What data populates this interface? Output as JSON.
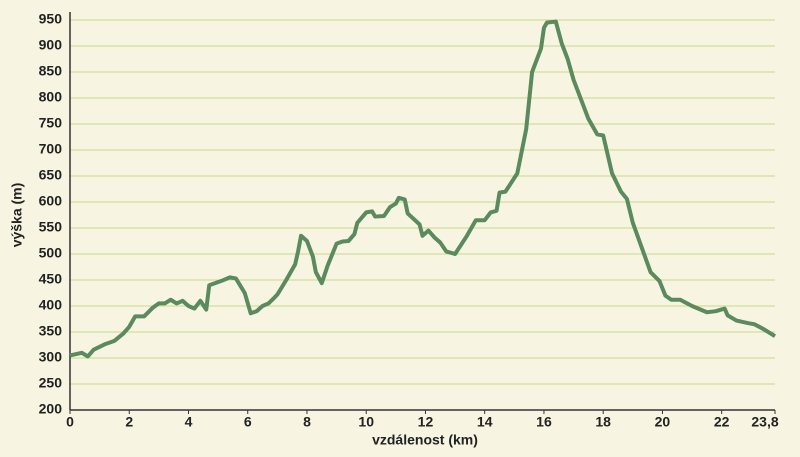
{
  "chart_data": {
    "type": "line",
    "xlabel": "vzdálenost (km)",
    "ylabel": "výška (m)",
    "x": [
      0,
      0.4,
      0.6,
      0.8,
      1.2,
      1.5,
      1.8,
      2.0,
      2.2,
      2.5,
      2.8,
      3.0,
      3.2,
      3.4,
      3.6,
      3.8,
      4.0,
      4.2,
      4.4,
      4.6,
      4.7,
      5.1,
      5.4,
      5.6,
      5.9,
      6.1,
      6.3,
      6.5,
      6.7,
      6.9,
      7.0,
      7.3,
      7.6,
      7.7,
      7.8,
      8.0,
      8.2,
      8.3,
      8.5,
      8.7,
      9.0,
      9.2,
      9.4,
      9.6,
      9.7,
      10.0,
      10.2,
      10.3,
      10.6,
      10.8,
      11.0,
      11.1,
      11.3,
      11.4,
      11.8,
      11.9,
      12.1,
      12.3,
      12.5,
      12.7,
      13.0,
      13.4,
      13.7,
      14.0,
      14.2,
      14.4,
      14.5,
      14.7,
      15.1,
      15.4,
      15.6,
      15.9,
      16.0,
      16.1,
      16.4,
      16.6,
      16.8,
      17.0,
      17.3,
      17.5,
      17.8,
      18.0,
      18.3,
      18.6,
      18.8,
      19.0,
      19.6,
      19.9,
      20.1,
      20.3,
      20.6,
      21.0,
      21.5,
      21.8,
      22.1,
      22.2,
      22.5,
      22.9,
      23.1,
      23.4,
      23.8
    ],
    "series": [
      {
        "name": "výška",
        "color": "#5b8a5e",
        "values": [
          305,
          310,
          303,
          316,
          327,
          333,
          347,
          360,
          380,
          380,
          397,
          405,
          405,
          412,
          405,
          410,
          400,
          395,
          410,
          393,
          440,
          448,
          455,
          453,
          425,
          386,
          390,
          400,
          405,
          416,
          422,
          450,
          480,
          505,
          535,
          525,
          495,
          465,
          444,
          478,
          520,
          524,
          525,
          538,
          560,
          580,
          582,
          572,
          573,
          590,
          597,
          608,
          605,
          578,
          557,
          535,
          545,
          532,
          522,
          505,
          500,
          535,
          565,
          565,
          580,
          583,
          618,
          620,
          655,
          740,
          850,
          895,
          935,
          945,
          947,
          905,
          875,
          835,
          790,
          760,
          730,
          728,
          655,
          620,
          606,
          560,
          465,
          448,
          420,
          412,
          412,
          400,
          388,
          390,
          395,
          382,
          372,
          367,
          365,
          356,
          342
        ]
      }
    ],
    "xlim": [
      0,
      23.8
    ],
    "xticks": [
      0,
      2,
      4,
      6,
      8,
      10,
      12,
      14,
      16,
      18,
      20,
      22,
      {
        "value": 23.8,
        "label": "23,8"
      }
    ],
    "ylim": [
      200,
      950
    ],
    "yticks": [
      200,
      250,
      300,
      350,
      400,
      450,
      500,
      550,
      600,
      650,
      700,
      750,
      800,
      850,
      900,
      950
    ],
    "grid": true
  }
}
